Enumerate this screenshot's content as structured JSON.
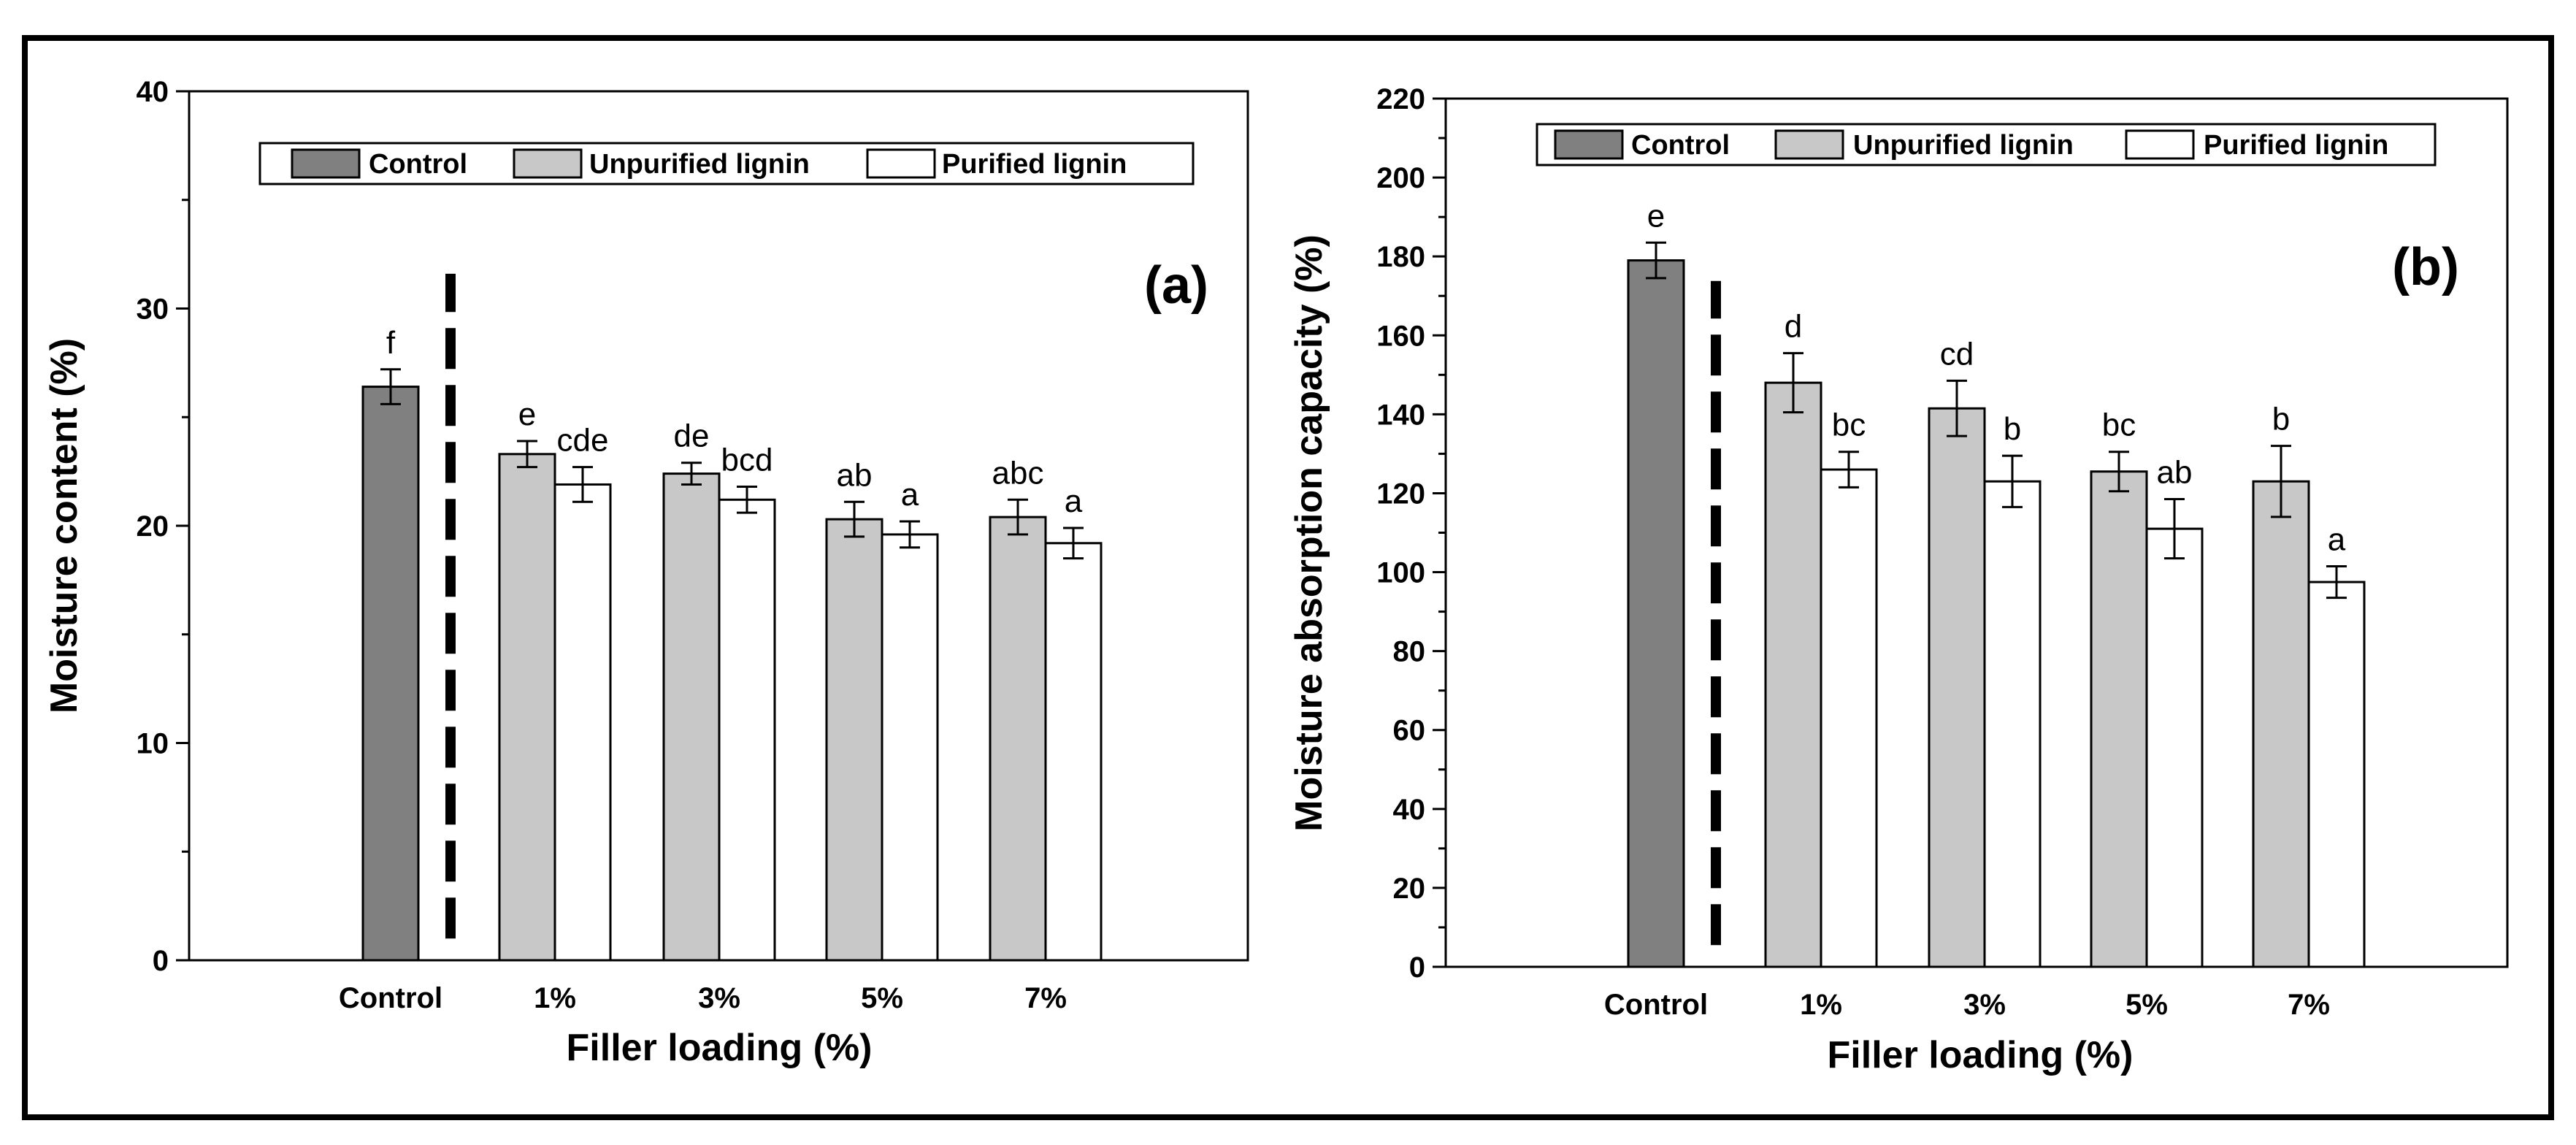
{
  "colors": {
    "control": "#808080",
    "unpurified": "#c8c8c8",
    "purified": "#ffffff",
    "axis": "#000000"
  },
  "chart_data": [
    {
      "type": "bar",
      "panel_label": "(a)",
      "xlabel": "Filler loading (%)",
      "ylabel": "Moisture content (%)",
      "ylim": [
        0,
        40
      ],
      "yticks": [
        0,
        10,
        20,
        30,
        40
      ],
      "legend": [
        "Control",
        "Unpurified lignin",
        "Purified lignin"
      ],
      "legend_position": "top",
      "categories": [
        "Control",
        "1%",
        "3%",
        "5%",
        "7%"
      ],
      "divider": "dashed vertical line between Control and 1%",
      "series": [
        {
          "name": "Control",
          "values": [
            26.4,
            null,
            null,
            null,
            null
          ],
          "errors": [
            0.8,
            null,
            null,
            null,
            null
          ],
          "letters": [
            "f",
            null,
            null,
            null,
            null
          ]
        },
        {
          "name": "Unpurified lignin",
          "values": [
            null,
            23.3,
            22.4,
            20.3,
            20.4
          ],
          "errors": [
            null,
            0.6,
            0.5,
            0.8,
            0.8
          ],
          "letters": [
            null,
            "e",
            "de",
            "ab",
            "abc"
          ]
        },
        {
          "name": "Purified lignin",
          "values": [
            null,
            21.9,
            21.2,
            19.6,
            19.2
          ],
          "errors": [
            null,
            0.8,
            0.6,
            0.6,
            0.7
          ],
          "letters": [
            null,
            "cde",
            "bcd",
            "a",
            "a"
          ]
        }
      ]
    },
    {
      "type": "bar",
      "panel_label": "(b)",
      "xlabel": "Filler loading (%)",
      "ylabel": "Moisture absorption capacity (%)",
      "ylim": [
        0,
        220
      ],
      "yticks": [
        0,
        20,
        40,
        60,
        80,
        100,
        120,
        140,
        160,
        180,
        200,
        220
      ],
      "legend": [
        "Control",
        "Unpurified lignin",
        "Purified lignin"
      ],
      "legend_position": "top",
      "categories": [
        "Control",
        "1%",
        "3%",
        "5%",
        "7%"
      ],
      "divider": "dashed vertical line between Control and 1%",
      "series": [
        {
          "name": "Control",
          "values": [
            179,
            null,
            null,
            null,
            null
          ],
          "errors": [
            4.5,
            null,
            null,
            null,
            null
          ],
          "letters": [
            "e",
            null,
            null,
            null,
            null
          ]
        },
        {
          "name": "Unpurified lignin",
          "values": [
            null,
            148,
            141.5,
            125.5,
            123
          ],
          "errors": [
            null,
            7.5,
            7,
            5,
            9
          ],
          "letters": [
            null,
            "d",
            "cd",
            "bc",
            "b"
          ]
        },
        {
          "name": "Purified lignin",
          "values": [
            null,
            126,
            123,
            111,
            97.5
          ],
          "errors": [
            null,
            4.5,
            6.5,
            7.5,
            4
          ],
          "letters": [
            null,
            "bc",
            "b",
            "ab",
            "a"
          ]
        }
      ]
    }
  ]
}
